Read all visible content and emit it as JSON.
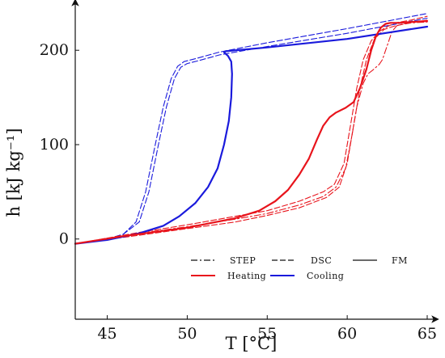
{
  "chart_data": {
    "type": "line",
    "xlabel": "T [°C]",
    "ylabel": "h [kJ kg⁻¹]",
    "xlim": [
      43,
      65
    ],
    "ylim": [
      -85,
      243
    ],
    "xticks": [
      45,
      50,
      55,
      60,
      65
    ],
    "yticks": [
      0,
      100,
      200
    ],
    "grid": false,
    "legend": {
      "placement": "bottom-right",
      "styles": [
        {
          "label": "STEP",
          "dash": "dash-dot"
        },
        {
          "label": "DSC",
          "dash": "dashed"
        },
        {
          "label": "FM",
          "dash": "solid"
        }
      ],
      "colors": [
        {
          "label": "Heating",
          "color": "#e8141c"
        },
        {
          "label": "Cooling",
          "color": "#1a1adc"
        }
      ]
    },
    "series": [
      {
        "process": "Cooling",
        "method": "DSC",
        "color": "#1a1adc",
        "dash": "dashed",
        "x": [
          43,
          45,
          46,
          46.8,
          47.4,
          48,
          48.5,
          49,
          49.4,
          49.8,
          50.5,
          52,
          55,
          60,
          65
        ],
        "y": [
          -5,
          0,
          5,
          18,
          50,
          100,
          140,
          170,
          183,
          188,
          191,
          198,
          208,
          223,
          239
        ]
      },
      {
        "process": "Cooling",
        "method": "DSC",
        "color": "#1a1adc",
        "dash": "dashed",
        "x": [
          43,
          45,
          46,
          47,
          47.6,
          48.2,
          48.7,
          49.2,
          49.6,
          50,
          50.7,
          52,
          55,
          60,
          65
        ],
        "y": [
          -5,
          0,
          5,
          18,
          50,
          100,
          140,
          170,
          182,
          186,
          189,
          195,
          204,
          218,
          234
        ]
      },
      {
        "process": "Cooling",
        "method": "FM",
        "color": "#1a1adc",
        "dash": "solid",
        "x": [
          43,
          45,
          47,
          48.5,
          49.5,
          50.5,
          51.3,
          51.9,
          52.3,
          52.6,
          52.75,
          52.8,
          52.75,
          52.55,
          52.35,
          52.3,
          52.4,
          55,
          60,
          65
        ],
        "y": [
          -5,
          -1,
          6,
          14,
          24,
          38,
          55,
          75,
          100,
          125,
          150,
          175,
          188,
          194,
          197,
          198,
          199,
          203,
          212,
          225
        ]
      },
      {
        "process": "Heating",
        "method": "STEP",
        "color": "#e8141c",
        "dash": "dash-dot",
        "x": [
          43,
          47,
          50,
          53,
          55,
          57,
          58.5,
          59.3,
          59.9,
          60.3,
          60.6,
          61,
          61.3,
          61.6,
          61.8,
          62,
          62.2,
          62.5,
          62.8,
          63.1,
          63.5,
          64,
          65
        ],
        "y": [
          -5,
          6,
          13,
          21,
          27,
          36,
          45,
          55,
          75,
          110,
          140,
          165,
          175,
          179,
          182,
          185,
          190,
          205,
          220,
          226,
          228,
          229,
          230
        ]
      },
      {
        "process": "Heating",
        "method": "DSC",
        "color": "#e8141c",
        "dash": "dashed",
        "x": [
          43,
          47,
          50,
          53,
          55,
          57,
          58.5,
          59.2,
          59.8,
          60.2,
          60.6,
          61,
          61.5,
          62,
          62.5,
          63,
          64,
          65
        ],
        "y": [
          -5,
          7,
          15,
          24,
          30,
          40,
          50,
          58,
          80,
          120,
          160,
          190,
          210,
          220,
          225,
          229,
          232,
          236
        ]
      },
      {
        "process": "Heating",
        "method": "DSC",
        "color": "#e8141c",
        "dash": "dashed",
        "x": [
          43,
          47,
          50,
          53,
          55,
          57,
          58.7,
          59.5,
          60,
          60.4,
          60.8,
          61.2,
          61.7,
          62.3,
          63,
          64,
          65
        ],
        "y": [
          -5,
          4,
          11,
          18,
          25,
          33,
          44,
          55,
          80,
          120,
          160,
          190,
          212,
          222,
          226,
          229,
          232
        ]
      },
      {
        "process": "Heating",
        "method": "FM",
        "color": "#e8141c",
        "dash": "solid",
        "x": [
          43,
          46,
          50,
          53,
          54.5,
          55.5,
          56.3,
          57,
          57.6,
          58.1,
          58.5,
          58.9,
          59.3,
          59.9,
          60.4,
          60.8,
          61.2,
          61.5,
          61.8,
          62.1,
          62.4,
          62.7,
          63.2,
          64,
          65
        ],
        "y": [
          -5,
          3,
          12,
          22,
          30,
          40,
          52,
          68,
          85,
          105,
          120,
          129,
          134,
          139,
          145,
          160,
          180,
          200,
          215,
          224,
          228,
          229,
          229,
          230,
          231
        ]
      }
    ]
  }
}
